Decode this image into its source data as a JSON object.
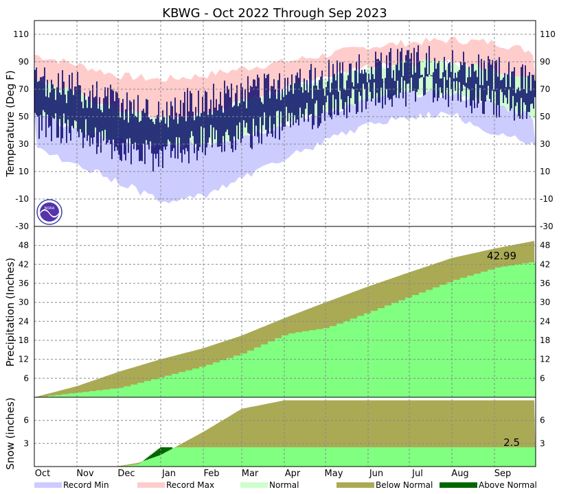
{
  "title": "KBWG - Oct 2022 Through Sep 2023",
  "colors": {
    "record_min": "#ccccff",
    "record_max": "#ffcccc",
    "normal": "#ccffcc",
    "observed": "#000066",
    "below_normal": "#aaaa55",
    "above_normal": "#006600",
    "observed_precip": "#80ff80",
    "grid": "#888888"
  },
  "months": [
    "Oct",
    "Nov",
    "Dec",
    "Jan",
    "Feb",
    "Mar",
    "Apr",
    "May",
    "Jun",
    "Jul",
    "Aug",
    "Sep"
  ],
  "legend": [
    {
      "label": "Record Min",
      "color": "#ccccff"
    },
    {
      "label": "Record Max",
      "color": "#ffcccc"
    },
    {
      "label": "Normal",
      "color": "#ccffcc"
    },
    {
      "label": "Below Normal",
      "color": "#aaaa55"
    },
    {
      "label": "Above Normal",
      "color": "#006600"
    }
  ],
  "chart_data": [
    {
      "type": "area",
      "panel": "temperature",
      "ylabel": "Temperature (Deg F)",
      "ylim": [
        -30,
        120
      ],
      "yticks": [
        -30,
        -10,
        10,
        30,
        50,
        70,
        90,
        110
      ],
      "logo": "noaa-logo",
      "x": [
        "Oct 1",
        "Nov 1",
        "Dec 1",
        "Jan 1",
        "Feb 1",
        "Mar 1",
        "Apr 1",
        "May 1",
        "Jun 1",
        "Jul 1",
        "Aug 1",
        "Sep 1",
        "Sep 30"
      ],
      "series": [
        {
          "name": "Record Max",
          "values": [
            95,
            88,
            80,
            77,
            80,
            85,
            90,
            95,
            101,
            104,
            106,
            104,
            97
          ]
        },
        {
          "name": "Normal High",
          "values": [
            78,
            66,
            55,
            48,
            51,
            60,
            70,
            78,
            86,
            89,
            89,
            84,
            77
          ]
        },
        {
          "name": "Normal Low",
          "values": [
            52,
            40,
            32,
            28,
            30,
            36,
            44,
            53,
            62,
            67,
            66,
            59,
            50
          ]
        },
        {
          "name": "Record Min",
          "values": [
            28,
            15,
            3,
            -12,
            -8,
            5,
            20,
            32,
            44,
            50,
            52,
            38,
            30
          ]
        },
        {
          "name": "Observed High",
          "values": [
            74,
            70,
            60,
            52,
            62,
            66,
            72,
            78,
            84,
            90,
            88,
            82,
            78
          ]
        },
        {
          "name": "Observed Low",
          "values": [
            45,
            40,
            26,
            20,
            32,
            36,
            46,
            55,
            64,
            70,
            68,
            60,
            55
          ]
        }
      ]
    },
    {
      "type": "area",
      "panel": "precipitation",
      "ylabel": "Precipitation (Inches)",
      "ylim": [
        0,
        54
      ],
      "yticks": [
        6,
        12,
        18,
        24,
        30,
        36,
        42,
        48
      ],
      "total_label": "42.99",
      "x": [
        "Oct 1",
        "Nov 1",
        "Dec 1",
        "Jan 1",
        "Feb 1",
        "Mar 1",
        "Apr 1",
        "May 1",
        "Jun 1",
        "Jul 1",
        "Aug 1",
        "Sep 1",
        "Sep 30"
      ],
      "series": [
        {
          "name": "Normal",
          "values": [
            0,
            3.5,
            8,
            12,
            15.5,
            19.5,
            25,
            30,
            35,
            39.5,
            44,
            47,
            49.5
          ]
        },
        {
          "name": "Observed",
          "values": [
            0,
            1.5,
            3,
            6.5,
            10,
            14,
            20,
            22,
            27,
            32,
            37,
            41,
            42.99
          ]
        }
      ]
    },
    {
      "type": "area",
      "panel": "snow",
      "ylabel": "Snow (inches)",
      "ylim": [
        0,
        9
      ],
      "yticks": [
        3,
        6
      ],
      "total_label": "2.5",
      "x": [
        "Oct 1",
        "Nov 1",
        "Dec 1",
        "Dec 15",
        "Jan 1",
        "Feb 1",
        "Mar 1",
        "Apr 1",
        "May 1",
        "Jun 1",
        "Jul 1",
        "Aug 1",
        "Sep 1",
        "Sep 30"
      ],
      "series": [
        {
          "name": "Normal",
          "values": [
            0,
            0,
            0.05,
            0.5,
            1.5,
            4.5,
            7.5,
            8.6,
            8.6,
            8.6,
            8.6,
            8.6,
            8.6,
            8.6
          ]
        },
        {
          "name": "Observed",
          "values": [
            0,
            0,
            0,
            0.3,
            2.5,
            2.5,
            2.5,
            2.5,
            2.5,
            2.5,
            2.5,
            2.5,
            2.5,
            2.5
          ]
        }
      ]
    }
  ]
}
